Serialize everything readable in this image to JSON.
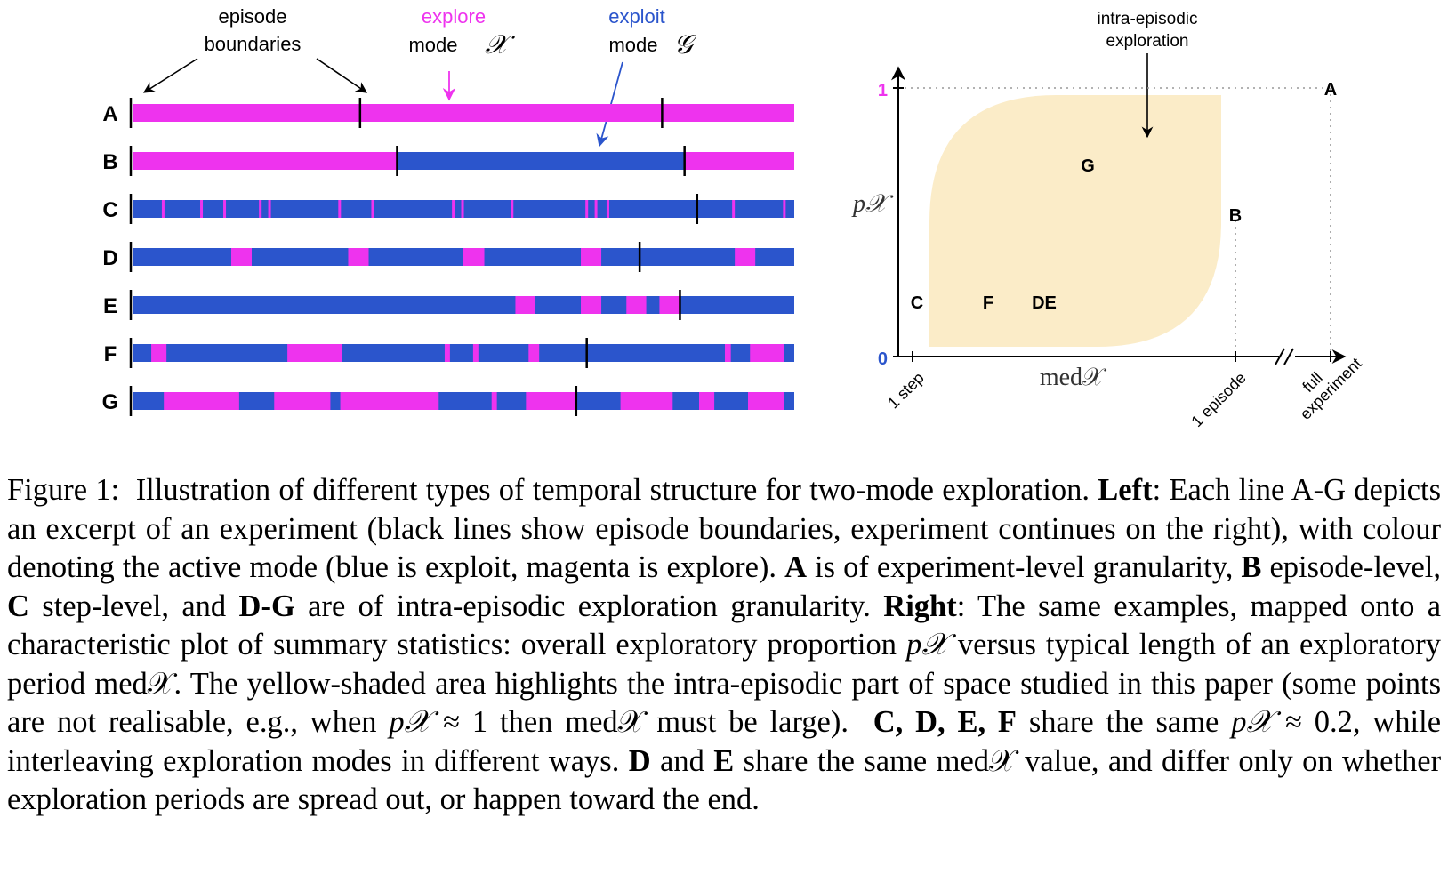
{
  "colors": {
    "explore": "#ee33ee",
    "exploit": "#2b55cc",
    "boundary": "#000000",
    "shade": "#fbecc8"
  },
  "left_panel": {
    "annotations": {
      "episode_line1": "episode",
      "episode_line2": "boundaries",
      "explore_line1": "explore",
      "explore_line2": "mode",
      "explore_symbol": "𝒳",
      "exploit_line1": "exploit",
      "exploit_line2": "mode",
      "exploit_symbol": "𝒢"
    },
    "rows": [
      {
        "label": "A",
        "boundaries": [
          0.343,
          0.8
        ],
        "segments": [
          {
            "mode": "explore",
            "start": 0.0,
            "end": 1.0
          }
        ]
      },
      {
        "label": "B",
        "boundaries": [
          0.399,
          0.834
        ],
        "segments": [
          {
            "mode": "explore",
            "start": 0.0,
            "end": 0.399
          },
          {
            "mode": "exploit",
            "start": 0.399,
            "end": 0.834
          },
          {
            "mode": "explore",
            "start": 0.834,
            "end": 1.0
          }
        ]
      },
      {
        "label": "C",
        "boundaries": [
          0.853
        ],
        "segments": [
          {
            "mode": "exploit",
            "start": 0.0,
            "end": 1.0
          }
        ],
        "ticks": [
          0.045,
          0.103,
          0.138,
          0.192,
          0.206,
          0.312,
          0.362,
          0.484,
          0.498,
          0.573,
          0.686,
          0.7,
          0.718,
          0.908,
          0.985
        ]
      },
      {
        "label": "D",
        "boundaries": [
          0.766
        ],
        "segments": [
          {
            "mode": "exploit",
            "start": 0.0,
            "end": 1.0
          },
          {
            "mode": "explore",
            "start": 0.148,
            "end": 0.179
          },
          {
            "mode": "explore",
            "start": 0.325,
            "end": 0.356
          },
          {
            "mode": "explore",
            "start": 0.499,
            "end": 0.531
          },
          {
            "mode": "explore",
            "start": 0.677,
            "end": 0.708
          },
          {
            "mode": "explore",
            "start": 0.91,
            "end": 0.941
          }
        ]
      },
      {
        "label": "E",
        "boundaries": [
          0.827
        ],
        "segments": [
          {
            "mode": "exploit",
            "start": 0.0,
            "end": 1.0
          },
          {
            "mode": "explore",
            "start": 0.578,
            "end": 0.608
          },
          {
            "mode": "explore",
            "start": 0.677,
            "end": 0.708
          },
          {
            "mode": "explore",
            "start": 0.746,
            "end": 0.776
          },
          {
            "mode": "explore",
            "start": 0.796,
            "end": 0.827
          }
        ]
      },
      {
        "label": "F",
        "boundaries": [
          0.686
        ],
        "segments": [
          {
            "mode": "exploit",
            "start": 0.0,
            "end": 1.0
          },
          {
            "mode": "explore",
            "start": 0.027,
            "end": 0.05
          },
          {
            "mode": "explore",
            "start": 0.233,
            "end": 0.316
          },
          {
            "mode": "explore",
            "start": 0.471,
            "end": 0.479
          },
          {
            "mode": "explore",
            "start": 0.514,
            "end": 0.522
          },
          {
            "mode": "explore",
            "start": 0.598,
            "end": 0.614
          },
          {
            "mode": "explore",
            "start": 0.895,
            "end": 0.904
          },
          {
            "mode": "explore",
            "start": 0.933,
            "end": 0.985
          }
        ]
      },
      {
        "label": "G",
        "boundaries": [
          0.67
        ],
        "segments": [
          {
            "mode": "exploit",
            "start": 0.0,
            "end": 1.0
          },
          {
            "mode": "explore",
            "start": 0.046,
            "end": 0.16
          },
          {
            "mode": "explore",
            "start": 0.213,
            "end": 0.298
          },
          {
            "mode": "explore",
            "start": 0.313,
            "end": 0.462
          },
          {
            "mode": "explore",
            "start": 0.542,
            "end": 0.55
          },
          {
            "mode": "explore",
            "start": 0.594,
            "end": 0.67
          },
          {
            "mode": "explore",
            "start": 0.737,
            "end": 0.816
          },
          {
            "mode": "explore",
            "start": 0.856,
            "end": 0.879
          },
          {
            "mode": "explore",
            "start": 0.93,
            "end": 0.985
          }
        ]
      }
    ]
  },
  "right_panel": {
    "annotation_line1": "intra-episodic",
    "annotation_line2": "exploration",
    "y_label": "p𝒳",
    "y_tick_top": "1",
    "y_tick_bottom": "0",
    "x_label": "med𝒳",
    "x_tick_1": "1 step",
    "x_tick_2": "1 episode",
    "x_tick_3_line1": "full",
    "x_tick_3_line2": "experiment",
    "points": [
      {
        "label": "A",
        "x": "full experiment",
        "y": 1
      },
      {
        "label": "B",
        "x": "1 episode",
        "y": 0.5
      },
      {
        "label": "G",
        "y": 0.7
      },
      {
        "label": "C",
        "x": "1 step",
        "y": 0.2
      },
      {
        "label": "F",
        "y": 0.2
      },
      {
        "label": "DE",
        "y": 0.2
      }
    ]
  },
  "caption": {
    "figure_label": "Figure 1:",
    "s1": "Illustration of different types of temporal structure for two-mode exploration.",
    "left_bold": "Left",
    "s2": ": Each line A-G depicts an excerpt of an experiment (black lines show episode boundaries, experiment continues on the right), with colour denoting the active mode (blue is exploit, magenta is explore).",
    "a_bold": "A",
    "s3": "is of experiment-level granularity,",
    "b_bold": "B",
    "s4": "episode-level,",
    "c_bold": "C",
    "s5": "step-level, and",
    "dg_bold": "D-G",
    "s6": "are of intra-episodic exploration granularity.",
    "right_bold": "Right",
    "s7": ": The same examples, mapped onto a characteristic plot of summary statistics: overall exploratory proportion",
    "p_sym": "p𝒳",
    "s8": "versus typical length of an exploratory period",
    "med_sym": "med𝒳",
    "s9": ". The yellow-shaded area highlights the intra-episodic part of space studied in this paper (some points are not realisable, e.g., when",
    "p_sym2": "p𝒳",
    "s10": "≈ 1 then",
    "med_sym2": "med𝒳",
    "s11": "must be large).",
    "cdef_bold": "C, D, E, F",
    "s12": "share the same",
    "p_sym3": "p𝒳",
    "s13": "≈ 0.2, while interleaving exploration modes in different ways.",
    "d_bold": "D",
    "s14": "and",
    "e_bold": "E",
    "s15": "share the same",
    "med_sym3": "med𝒳",
    "s16": "value, and differ only on whether exploration periods are spread out, or happen toward the end."
  }
}
